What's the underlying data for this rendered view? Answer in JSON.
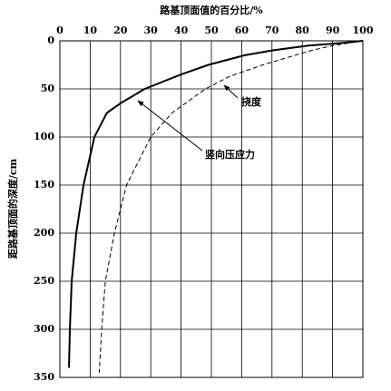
{
  "chart_data": {
    "type": "line",
    "title": "路基顶面值的百分比/%",
    "y_label": "距路基顶面的深度/cm",
    "xlim": [
      0,
      100
    ],
    "xticks": [
      0,
      10,
      20,
      30,
      40,
      50,
      60,
      70,
      80,
      90,
      100
    ],
    "ylim": [
      0,
      350
    ],
    "yticks": [
      0,
      50,
      100,
      150,
      200,
      250,
      300,
      350
    ],
    "y_inverted": true,
    "x_axis_position": "top",
    "grid": true,
    "series": [
      {
        "name": "竖向压应力",
        "color": "#000000",
        "dash": false,
        "x": [
          100,
          94,
          82,
          70,
          61,
          49,
          40,
          28,
          20,
          15.5,
          11.4,
          7.8,
          5.4,
          3.9,
          3.3,
          3.0
        ],
        "values": [
          0,
          2,
          5,
          10,
          15,
          25,
          35,
          50,
          65,
          75,
          100,
          150,
          200,
          250,
          300,
          340
        ]
      },
      {
        "name": "挠度",
        "color": "#000000",
        "dash": true,
        "x": [
          100,
          90,
          83,
          67,
          56,
          48,
          37,
          30,
          22,
          18,
          15,
          13.8,
          13
        ],
        "values": [
          0,
          5,
          10,
          25,
          37,
          50,
          75,
          100,
          150,
          200,
          250,
          300,
          345
        ]
      }
    ]
  }
}
